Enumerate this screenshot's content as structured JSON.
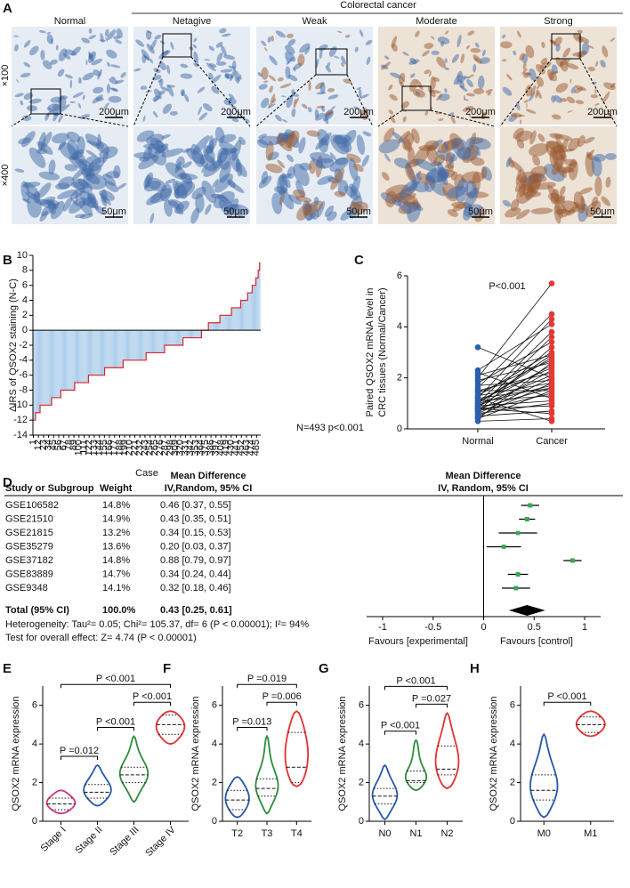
{
  "panel_a": {
    "label": "A",
    "group_label": "Colorectal cancer",
    "columns": [
      "Normal",
      "Netagive",
      "Weak",
      "Moderate",
      "Strong"
    ],
    "rows": [
      "×100",
      "×400"
    ],
    "scale_bars": [
      "200μm",
      "50μm"
    ]
  },
  "chart_data": [
    {
      "type": "waterfall",
      "panel_label": "B",
      "ylabel": "ΔIRS of QSOX2 staining (N-C)",
      "xlabel": "Case",
      "annotation": "N=493  p<0.001",
      "color": "#a8cbea",
      "line_color": "#d9262e",
      "xlim": [
        0,
        494
      ],
      "xticks": [
        1,
        12,
        23,
        34,
        45,
        56,
        67,
        78,
        89,
        100,
        111,
        122,
        133,
        144,
        155,
        166,
        177,
        188,
        199,
        210,
        221,
        232,
        243,
        254,
        265,
        276,
        287,
        298,
        309,
        320,
        331,
        342,
        353,
        364,
        375,
        386,
        397,
        408,
        419,
        430,
        441,
        452,
        463,
        474,
        485
      ],
      "ylim": [
        -14,
        10
      ],
      "yticks": [
        -14,
        -12,
        -10,
        -8,
        -6,
        -4,
        -2,
        0,
        2,
        4,
        6,
        8,
        10
      ],
      "values": [
        -12,
        -12,
        -12,
        -12,
        -12,
        -11,
        -11,
        -11,
        -11,
        -11,
        -11,
        -11,
        -11,
        -11,
        -11,
        -10,
        -10,
        -10,
        -10,
        -10,
        -10,
        -10,
        -10,
        -10,
        -10,
        -10,
        -10,
        -10,
        -10,
        -10,
        -10,
        -10,
        -10,
        -10,
        -10,
        -10,
        -10,
        -10,
        -10,
        -10,
        -9,
        -9,
        -9,
        -9,
        -9,
        -9,
        -9,
        -9,
        -9,
        -9,
        -9,
        -9,
        -9,
        -9,
        -9,
        -9,
        -9,
        -9,
        -9,
        -9,
        -8,
        -8,
        -8,
        -8,
        -8,
        -8,
        -8,
        -8,
        -8,
        -8,
        -8,
        -8,
        -8,
        -8,
        -8,
        -8,
        -8,
        -8,
        -8,
        -8,
        -8,
        -8,
        -8,
        -8,
        -8,
        -8,
        -8,
        -8,
        -8,
        -8,
        -7,
        -7,
        -7,
        -7,
        -7,
        -7,
        -7,
        -7,
        -7,
        -7,
        -7,
        -7,
        -7,
        -7,
        -7,
        -7,
        -7,
        -7,
        -7,
        -7,
        -7,
        -7,
        -7,
        -7,
        -7,
        -7,
        -7,
        -7,
        -7,
        -7,
        -6,
        -6,
        -6,
        -6,
        -6,
        -6,
        -6,
        -6,
        -6,
        -6,
        -6,
        -6,
        -6,
        -6,
        -6,
        -6,
        -6,
        -6,
        -6,
        -6,
        -6,
        -6,
        -6,
        -6,
        -6,
        -6,
        -6,
        -6,
        -6,
        -6,
        -6,
        -6,
        -6,
        -6,
        -6,
        -5,
        -5,
        -5,
        -5,
        -5,
        -5,
        -5,
        -5,
        -5,
        -5,
        -5,
        -5,
        -5,
        -5,
        -5,
        -5,
        -5,
        -5,
        -5,
        -5,
        -5,
        -5,
        -5,
        -5,
        -5,
        -5,
        -5,
        -5,
        -5,
        -5,
        -5,
        -5,
        -5,
        -5,
        -5,
        -5,
        -5,
        -5,
        -5,
        -5,
        -4,
        -4,
        -4,
        -4,
        -4,
        -4,
        -4,
        -4,
        -4,
        -4,
        -4,
        -4,
        -4,
        -4,
        -4,
        -4,
        -4,
        -4,
        -4,
        -4,
        -4,
        -4,
        -4,
        -4,
        -4,
        -4,
        -4,
        -4,
        -4,
        -4,
        -4,
        -4,
        -4,
        -4,
        -4,
        -4,
        -4,
        -4,
        -4,
        -4,
        -4,
        -4,
        -4,
        -4,
        -4,
        -4,
        -4,
        -4,
        -4,
        -4,
        -3,
        -3,
        -3,
        -3,
        -3,
        -3,
        -3,
        -3,
        -3,
        -3,
        -3,
        -3,
        -3,
        -3,
        -3,
        -3,
        -3,
        -3,
        -3,
        -3,
        -3,
        -3,
        -3,
        -3,
        -3,
        -3,
        -3,
        -3,
        -3,
        -3,
        -3,
        -3,
        -3,
        -3,
        -3,
        -3,
        -3,
        -3,
        -3,
        -3,
        -2,
        -2,
        -2,
        -2,
        -2,
        -2,
        -2,
        -2,
        -2,
        -2,
        -2,
        -2,
        -2,
        -2,
        -2,
        -2,
        -2,
        -2,
        -2,
        -2,
        -2,
        -2,
        -2,
        -2,
        -2,
        -2,
        -2,
        -2,
        -2,
        -2,
        -2,
        -2,
        -2,
        -2,
        -2,
        -2,
        -2,
        -2,
        -2,
        -2,
        -1,
        -1,
        -1,
        -1,
        -1,
        -1,
        -1,
        -1,
        -1,
        -1,
        -1,
        -1,
        -1,
        -1,
        -1,
        -1,
        -1,
        -1,
        -1,
        -1,
        -1,
        -1,
        -1,
        -1,
        -1,
        -1,
        -1,
        -1,
        -1,
        -1,
        -1,
        -1,
        -1,
        -1,
        -1,
        -1,
        -1,
        -1,
        -1,
        -1,
        0,
        0,
        0,
        0,
        0,
        0,
        0,
        0,
        0,
        0,
        0,
        0,
        0,
        0,
        0,
        1,
        1,
        1,
        1,
        1,
        1,
        1,
        1,
        1,
        1,
        1,
        1,
        1,
        1,
        1,
        1,
        1,
        1,
        1,
        1,
        1,
        1,
        1,
        1,
        1,
        2,
        2,
        2,
        2,
        2,
        2,
        2,
        2,
        2,
        2,
        2,
        2,
        2,
        2,
        2,
        2,
        2,
        2,
        2,
        2,
        2,
        2,
        2,
        2,
        2,
        3,
        3,
        3,
        3,
        3,
        3,
        3,
        3,
        3,
        3,
        3,
        3,
        3,
        3,
        3,
        3,
        3,
        3,
        3,
        3,
        4,
        4,
        4,
        4,
        4,
        4,
        4,
        4,
        4,
        4,
        4,
        4,
        4,
        4,
        4,
        5,
        5,
        5,
        5,
        5,
        5,
        5,
        5,
        5,
        5,
        6,
        6,
        6,
        6,
        6,
        6,
        6,
        6,
        7,
        7,
        7,
        7,
        7,
        8,
        8,
        8,
        9,
        9
      ]
    },
    {
      "type": "paired",
      "panel_label": "C",
      "ylabel": [
        "Paired QSOX2 mRNA level in",
        "CRC tissues (Normal/Cancer)"
      ],
      "annotation": "P<0.001",
      "ylim": [
        0,
        6
      ],
      "yticks": [
        0,
        2,
        4,
        6
      ],
      "groups": [
        {
          "label": "Normal",
          "color": "#2b5fad",
          "values": [
            3.2,
            2.3,
            2.2,
            2.1,
            2.0,
            1.9,
            1.8,
            1.7,
            1.6,
            1.5,
            1.5,
            1.4,
            1.3,
            1.3,
            1.2,
            1.2,
            1.1,
            1.1,
            1.0,
            1.0,
            1.0,
            0.9,
            0.9,
            0.9,
            0.8,
            0.8,
            0.8,
            0.7,
            0.7,
            0.7,
            0.6,
            0.6,
            0.5,
            0.5,
            0.4,
            0.4,
            0.3,
            1.2,
            1.0,
            0.8
          ]
        },
        {
          "label": "Cancer",
          "color": "#e53935",
          "values": [
            2.0,
            4.1,
            1.2,
            2.9,
            5.7,
            2.6,
            3.4,
            1.9,
            4.5,
            2.2,
            1.5,
            2.7,
            3.0,
            1.8,
            4.3,
            1.6,
            2.4,
            1.3,
            2.8,
            1.7,
            3.8,
            2.1,
            1.1,
            2.5,
            3.6,
            1.6,
            0.9,
            2.3,
            1.4,
            3.2,
            2.0,
            1.0,
            1.8,
            0.7,
            2.6,
            1.5,
            0.4,
            0.3,
            2.9,
            0.6
          ]
        }
      ]
    },
    {
      "type": "forest",
      "panel_label": "D",
      "columns": {
        "study": "Study or Subgroup",
        "weight": "Weight",
        "effect": [
          "Mean Difference",
          "IV,Random, 95% CI"
        ]
      },
      "plot_title": [
        "Mean Difference",
        "IV, Random, 95% CI"
      ],
      "studies": [
        "GSE106582",
        "GSE21510",
        "GSE21815",
        "GSE35279",
        "GSE37182",
        "GSE83889",
        "GSE9348"
      ],
      "weights": [
        14.8,
        14.9,
        13.2,
        13.6,
        14.8,
        14.7,
        14.1
      ],
      "weight_labels": [
        "14.8%",
        "14.9%",
        "13.2%",
        "13.6%",
        "14.8%",
        "14.7%",
        "14.1%"
      ],
      "values": [
        0.46,
        0.43,
        0.34,
        0.2,
        0.88,
        0.34,
        0.32
      ],
      "lower": [
        0.37,
        0.35,
        0.15,
        0.03,
        0.79,
        0.24,
        0.18
      ],
      "upper": [
        0.55,
        0.51,
        0.53,
        0.37,
        0.97,
        0.44,
        0.46
      ],
      "value_labels": [
        "0.46 [0.37, 0.55]",
        "0.43 [0.35, 0.51]",
        "0.34 [0.15, 0.53]",
        "0.20 [0.03, 0.37]",
        "0.88 [0.79, 0.97]",
        "0.34 [0.24, 0.44]",
        "0.32 [0.18, 0.46]"
      ],
      "total": {
        "label": "Total (95% CI)",
        "weight": 100.0,
        "weight_label": "100.0%",
        "value": 0.43,
        "lower": 0.25,
        "upper": 0.61,
        "value_label": "0.43 [0.25, 0.61]"
      },
      "heterogeneity": "Heterogeneity: Tau²= 0.05; Chi²= 105.37, df= 6 (P < 0.00001); I²= 94%",
      "overall_effect": "Test for overall effect: Z= 4.74 (P < 0.00001)",
      "color": "#3aa655",
      "xlim": [
        -1,
        1
      ],
      "xticks": [
        -1,
        -0.5,
        0,
        0.5,
        1
      ],
      "xlabels": [
        "Favours [experimental]",
        "Favours [control]"
      ]
    },
    {
      "type": "violin",
      "panel_label": "E",
      "ylabel": "QSOX2 mRNA expression",
      "ylim": [
        0,
        7
      ],
      "yticks": [
        0,
        2,
        4,
        6
      ],
      "categories": [
        "Stage I",
        "Stage II",
        "Stage III",
        "Stage IV"
      ],
      "colors": [
        "#d0337f",
        "#2458a8",
        "#2e8b3e",
        "#e53030"
      ],
      "min": [
        0.4,
        0.8,
        1.0,
        4.0
      ],
      "q1": [
        0.6,
        1.2,
        2.0,
        4.5
      ],
      "median": [
        0.9,
        1.5,
        2.4,
        5.0
      ],
      "q3": [
        1.2,
        1.9,
        2.8,
        5.5
      ],
      "max": [
        1.6,
        2.9,
        4.4,
        5.7
      ],
      "comparisons": [
        {
          "groups": [
            "Stage I",
            "Stage II"
          ],
          "label": "P =0.012"
        },
        {
          "groups": [
            "Stage II",
            "Stage III"
          ],
          "label": "P <0.001"
        },
        {
          "groups": [
            "Stage III",
            "Stage IV"
          ],
          "label": "P <0.001"
        },
        {
          "groups": [
            "Stage I",
            "Stage IV"
          ],
          "label": "P <0.001"
        }
      ]
    },
    {
      "type": "violin",
      "panel_label": "F",
      "ylabel": "QSOX2 mRNA expression",
      "ylim": [
        0,
        7
      ],
      "yticks": [
        0,
        2,
        4,
        6
      ],
      "categories": [
        "T2",
        "T3",
        "T4"
      ],
      "colors": [
        "#2458a8",
        "#2e8b3e",
        "#e53030"
      ],
      "min": [
        0.2,
        0.4,
        1.8
      ],
      "q1": [
        0.6,
        1.3,
        2.0
      ],
      "median": [
        1.1,
        1.7,
        2.8
      ],
      "q3": [
        1.6,
        2.2,
        4.6
      ],
      "max": [
        2.3,
        4.4,
        5.7
      ],
      "comparisons": [
        {
          "groups": [
            "T2",
            "T3"
          ],
          "label": "P =0.013"
        },
        {
          "groups": [
            "T3",
            "T4"
          ],
          "label": "P =0.006"
        },
        {
          "groups": [
            "T2",
            "T4"
          ],
          "label": "P =0.019"
        }
      ]
    },
    {
      "type": "violin",
      "panel_label": "G",
      "ylabel": "QSOX2 mRNA expression",
      "ylim": [
        0,
        7
      ],
      "yticks": [
        0,
        2,
        4,
        6
      ],
      "categories": [
        "N0",
        "N1",
        "N2"
      ],
      "colors": [
        "#2458a8",
        "#2e8b3e",
        "#e53030"
      ],
      "min": [
        0.1,
        1.6,
        1.7
      ],
      "q1": [
        0.9,
        2.0,
        2.4
      ],
      "median": [
        1.3,
        2.1,
        2.7
      ],
      "q3": [
        1.7,
        2.6,
        3.9
      ],
      "max": [
        2.9,
        4.2,
        5.6
      ],
      "comparisons": [
        {
          "groups": [
            "N0",
            "N1"
          ],
          "label": "P <0.001"
        },
        {
          "groups": [
            "N1",
            "N2"
          ],
          "label": "P =0.027"
        },
        {
          "groups": [
            "N0",
            "N2"
          ],
          "label": "P <0.001"
        }
      ]
    },
    {
      "type": "violin",
      "panel_label": "H",
      "ylabel": "QSOX2 mRNA expression",
      "ylim": [
        0,
        7
      ],
      "yticks": [
        0,
        2,
        4,
        6
      ],
      "categories": [
        "M0",
        "M1"
      ],
      "colors": [
        "#2458a8",
        "#e53030"
      ],
      "min": [
        0.2,
        4.4
      ],
      "q1": [
        1.1,
        4.6
      ],
      "median": [
        1.6,
        5.0
      ],
      "q3": [
        2.4,
        5.4
      ],
      "max": [
        4.5,
        5.7
      ],
      "comparisons": [
        {
          "groups": [
            "M0",
            "M1"
          ],
          "label": "P <0.001"
        }
      ]
    }
  ]
}
